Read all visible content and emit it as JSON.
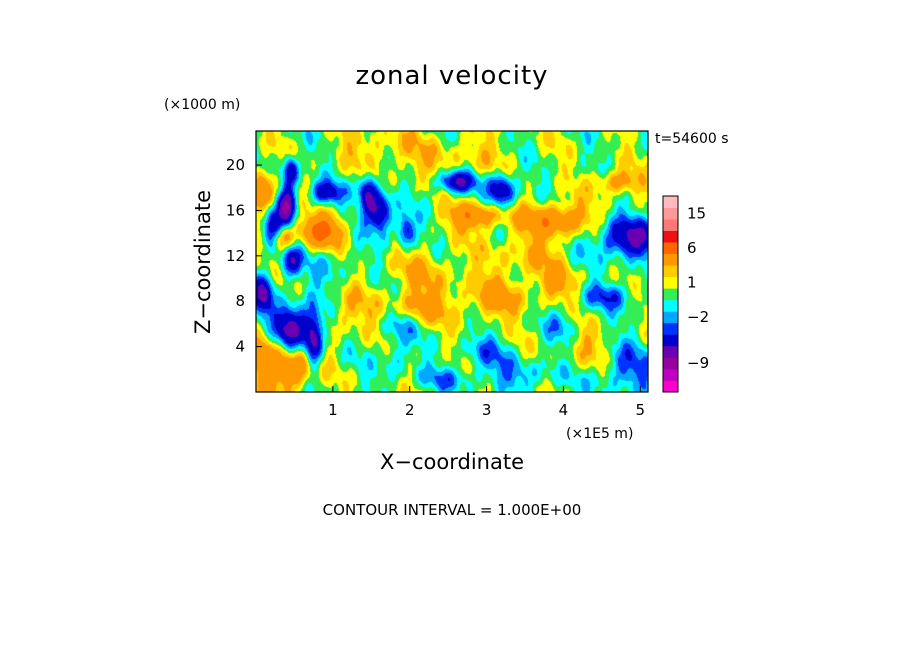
{
  "chart_data": {
    "type": "heatmap",
    "title": "zonal velocity",
    "xlabel": "X−coordinate",
    "ylabel": "Z−coordinate",
    "x_unit_label": "(×1E5 m)",
    "y_unit_label": "(×1000 m)",
    "time_label": "t=54600 s",
    "contour_note": "CONTOUR INTERVAL = 1.000E+00",
    "xlim": [
      0,
      5.1
    ],
    "ylim": [
      0,
      23
    ],
    "x_ticks": [
      1,
      2,
      3,
      4,
      5
    ],
    "x_tick_labels": [
      "1",
      "2",
      "3",
      "4",
      "5"
    ],
    "y_ticks": [
      4,
      8,
      12,
      16,
      20
    ],
    "y_tick_labels": [
      "4",
      "8",
      "12",
      "16",
      "20"
    ],
    "color_levels": [
      {
        "value": -13,
        "color": "#ff00cc"
      },
      {
        "value": -11,
        "color": "#c000c0"
      },
      {
        "value": -9,
        "color": "#9900a0"
      },
      {
        "value": -7,
        "color": "#6a00b0"
      },
      {
        "value": -5,
        "color": "#0000cc"
      },
      {
        "value": -3,
        "color": "#0033ff"
      },
      {
        "value": -2,
        "color": "#00a8ff"
      },
      {
        "value": -1,
        "color": "#00ffff"
      },
      {
        "value": 0,
        "color": "#33ee55"
      },
      {
        "value": 1,
        "color": "#ffff00"
      },
      {
        "value": 2,
        "color": "#ffcc00"
      },
      {
        "value": 3,
        "color": "#ff9900"
      },
      {
        "value": 6,
        "color": "#ff6600"
      },
      {
        "value": 9,
        "color": "#ee1111"
      },
      {
        "value": 12,
        "color": "#ff7777"
      },
      {
        "value": 15,
        "color": "#ff9999"
      },
      {
        "value": 18,
        "color": "#ffbbbb"
      }
    ],
    "colorbar_labels": [
      {
        "value": 15,
        "label": "15"
      },
      {
        "value": 6,
        "label": "6"
      },
      {
        "value": 1,
        "label": "1"
      },
      {
        "value": -2,
        "label": "−2"
      },
      {
        "value": -9,
        "label": "−9"
      }
    ],
    "features": [
      {
        "x": 0.4,
        "z": 16.5,
        "sx": 0.08,
        "sz": 1.2,
        "amp": -7
      },
      {
        "x": 0.45,
        "z": 19.5,
        "sx": 0.07,
        "sz": 0.9,
        "amp": -6
      },
      {
        "x": 0.2,
        "z": 14.5,
        "sx": 0.09,
        "sz": 1.2,
        "amp": -6
      },
      {
        "x": 0.45,
        "z": 5.7,
        "sx": 0.16,
        "sz": 1.4,
        "amp": -8
      },
      {
        "x": 0.75,
        "z": 4.6,
        "sx": 0.08,
        "sz": 1.8,
        "amp": -7
      },
      {
        "x": 0.45,
        "z": 11.5,
        "sx": 0.1,
        "sz": 1.0,
        "amp": -5
      },
      {
        "x": 0.1,
        "z": 8.5,
        "sx": 0.09,
        "sz": 1.2,
        "amp": -6
      },
      {
        "x": 0.9,
        "z": 17.5,
        "sx": 0.15,
        "sz": 0.7,
        "amp": -5
      },
      {
        "x": 1.62,
        "z": 15.8,
        "sx": 0.1,
        "sz": 1.2,
        "amp": -7
      },
      {
        "x": 1.45,
        "z": 17.5,
        "sx": 0.08,
        "sz": 1.3,
        "amp": -6
      },
      {
        "x": 1.95,
        "z": 14.2,
        "sx": 0.08,
        "sz": 1.0,
        "amp": -5
      },
      {
        "x": 2.6,
        "z": 18.5,
        "sx": 0.18,
        "sz": 0.7,
        "amp": -6
      },
      {
        "x": 3.2,
        "z": 17.8,
        "sx": 0.12,
        "sz": 1.1,
        "amp": -6
      },
      {
        "x": 4.85,
        "z": 13.5,
        "sx": 0.3,
        "sz": 1.2,
        "amp": -6
      },
      {
        "x": 4.6,
        "z": 8.5,
        "sx": 0.25,
        "sz": 0.8,
        "amp": -3
      },
      {
        "x": 4.8,
        "z": 2.0,
        "sx": 0.3,
        "sz": 1.5,
        "amp": -3
      },
      {
        "x": 3.0,
        "z": 3.5,
        "sx": 0.25,
        "sz": 1.0,
        "amp": -2
      },
      {
        "x": 3.5,
        "z": 1.5,
        "sx": 0.35,
        "sz": 1.0,
        "amp": -2
      },
      {
        "x": 2.5,
        "z": 1.2,
        "sx": 0.3,
        "sz": 0.7,
        "amp": -2
      },
      {
        "x": 4.0,
        "z": 6.0,
        "sx": 0.15,
        "sz": 1.0,
        "amp": -2
      },
      {
        "x": 1.85,
        "z": 6.0,
        "sx": 0.15,
        "sz": 1.2,
        "amp": -2
      },
      {
        "x": 1.0,
        "z": 11.0,
        "sx": 0.2,
        "sz": 1.5,
        "amp": -1.5
      },
      {
        "x": 1.8,
        "z": 3.0,
        "sx": 0.12,
        "sz": 1.2,
        "amp": -2
      },
      {
        "x": 0.1,
        "z": 17.5,
        "sx": 0.1,
        "sz": 1.3,
        "amp": 6
      },
      {
        "x": 0.85,
        "z": 14.2,
        "sx": 0.2,
        "sz": 1.0,
        "amp": 6
      },
      {
        "x": 0.35,
        "z": 13.5,
        "sx": 0.1,
        "sz": 0.8,
        "amp": 4
      },
      {
        "x": 2.85,
        "z": 15.5,
        "sx": 0.25,
        "sz": 0.8,
        "amp": 5
      },
      {
        "x": 3.9,
        "z": 15.2,
        "sx": 0.3,
        "sz": 1.0,
        "amp": 5
      },
      {
        "x": 4.7,
        "z": 18.5,
        "sx": 0.2,
        "sz": 0.7,
        "amp": 4
      },
      {
        "x": 3.1,
        "z": 8.2,
        "sx": 0.3,
        "sz": 1.2,
        "amp": 3
      },
      {
        "x": 2.1,
        "z": 7.5,
        "sx": 0.3,
        "sz": 1.0,
        "amp": 3
      },
      {
        "x": 0.2,
        "z": 3.0,
        "sx": 0.25,
        "sz": 2.0,
        "amp": 4
      },
      {
        "x": 0.55,
        "z": 2.0,
        "sx": 0.15,
        "sz": 1.2,
        "amp": 4
      },
      {
        "x": 2.2,
        "z": 10.5,
        "sx": 0.35,
        "sz": 1.5,
        "amp": 2
      },
      {
        "x": 3.5,
        "z": 12.0,
        "sx": 0.35,
        "sz": 1.5,
        "amp": 2
      },
      {
        "x": 2.6,
        "z": 20.5,
        "sx": 0.5,
        "sz": 1.5,
        "amp": 1.5
      },
      {
        "x": 1.6,
        "z": 21.5,
        "sx": 0.4,
        "sz": 1.5,
        "amp": 1.5
      },
      {
        "x": 4.3,
        "z": 3.5,
        "sx": 0.2,
        "sz": 1.5,
        "amp": 2
      },
      {
        "x": 1.2,
        "z": 7.0,
        "sx": 0.2,
        "sz": 1.5,
        "amp": 2
      },
      {
        "x": 3.9,
        "z": 9.5,
        "sx": 0.2,
        "sz": 1.0,
        "amp": 2.5
      }
    ]
  }
}
